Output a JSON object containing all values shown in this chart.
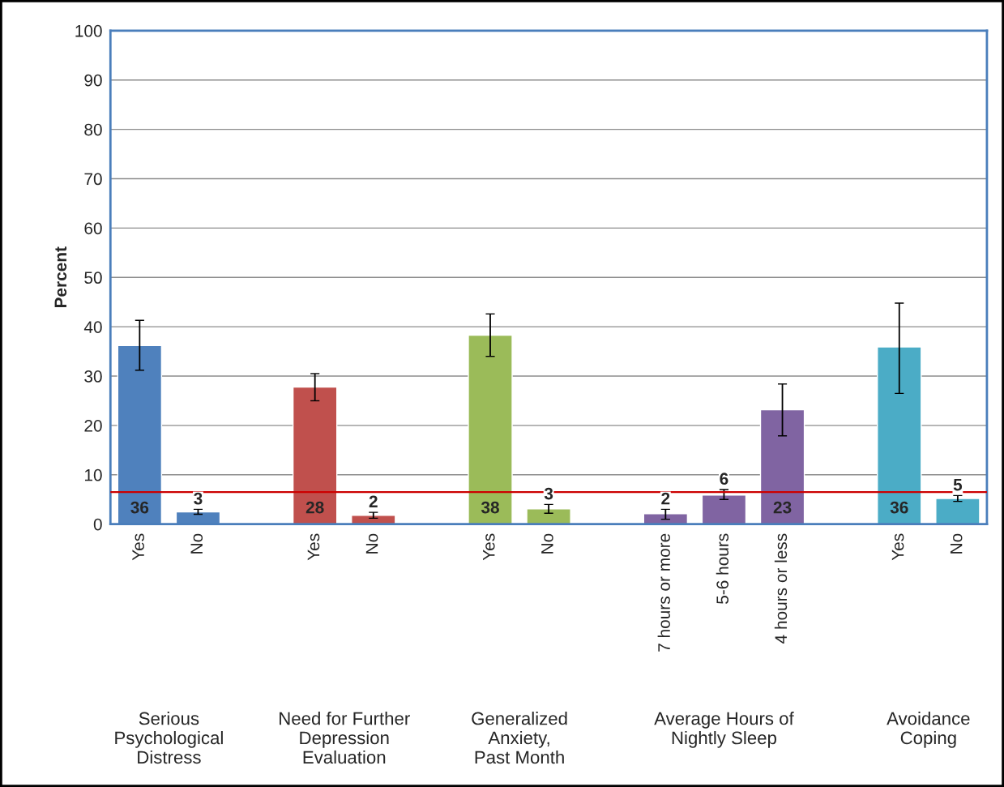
{
  "chart_data": {
    "type": "bar",
    "categories": [
      "Yes",
      "No",
      null,
      "Yes",
      "No",
      null,
      "Yes",
      "No",
      null,
      "7 hours or more",
      "5-6 hours",
      "4 hours or less",
      null,
      "Yes",
      "No"
    ],
    "values": [
      36.2,
      2.5,
      null,
      27.8,
      1.8,
      null,
      38.3,
      3.1,
      null,
      2.1,
      5.9,
      23.2,
      null,
      35.9,
      5.2
    ],
    "colors": [
      "#4f81bd",
      "#4f81bd",
      null,
      "#c0504d",
      "#c0504d",
      null,
      "#9bbb59",
      "#9bbb59",
      null,
      "#8064a2",
      "#8064a2",
      "#8064a2",
      null,
      "#4bacc6",
      "#4bacc6"
    ],
    "errors": [
      [
        31.2,
        41.3
      ],
      [
        2.0,
        3.0
      ],
      null,
      [
        25.0,
        30.5
      ],
      [
        1.2,
        2.4
      ],
      null,
      [
        34.0,
        42.6
      ],
      [
        2.2,
        4.0
      ],
      null,
      [
        1.0,
        3.0
      ],
      [
        5.0,
        7.0
      ],
      [
        17.9,
        28.4
      ],
      null,
      [
        26.5,
        44.8
      ],
      [
        4.6,
        5.8
      ]
    ],
    "value_labels": [
      "36",
      "3",
      null,
      "28",
      "2",
      null,
      "38",
      "3",
      null,
      "2",
      "6",
      "23",
      null,
      "36",
      "5"
    ],
    "ylabel": "Percent",
    "ylim": [
      0,
      100
    ],
    "yticks": [
      0,
      10,
      20,
      30,
      40,
      50,
      60,
      70,
      80,
      90,
      100
    ],
    "grid": "y",
    "ref_lines": [
      {
        "axis": "y",
        "value": 6.5,
        "color": "#cc0000"
      }
    ],
    "annotations": [
      "Serious\nPsychological\nDistress",
      "Need for Further\nDepression\nEvaluation",
      "Generalized\nAnxiety,\nPast Month",
      "Average Hours of\nNightly Sleep",
      "Avoidance\nCoping"
    ]
  }
}
